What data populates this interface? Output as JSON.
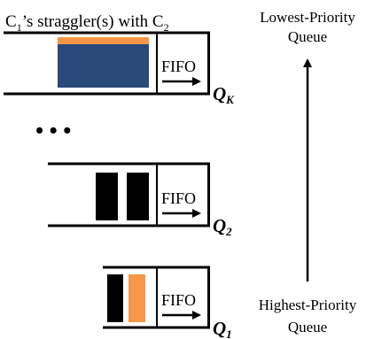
{
  "caption": {
    "c1": "C",
    "c1_sub": "1",
    "middle": "’s straggler(s) with C",
    "c2_sub": "2"
  },
  "fifo_label": "FIFO",
  "queues": [
    {
      "id": "qk",
      "label": "Q",
      "sub": "K"
    },
    {
      "id": "q2",
      "label": "Q",
      "sub": "2"
    },
    {
      "id": "q1",
      "label": "Q",
      "sub": "1"
    }
  ],
  "ellipsis": "• • •",
  "priority": {
    "lowest_line1": "Lowest-Priority",
    "lowest_line2": "Queue",
    "highest_line1": "Highest-Priority",
    "highest_line2": "Queue"
  },
  "colors": {
    "navy": "#2a4a7b",
    "orange": "#f79646",
    "black": "#000000"
  }
}
